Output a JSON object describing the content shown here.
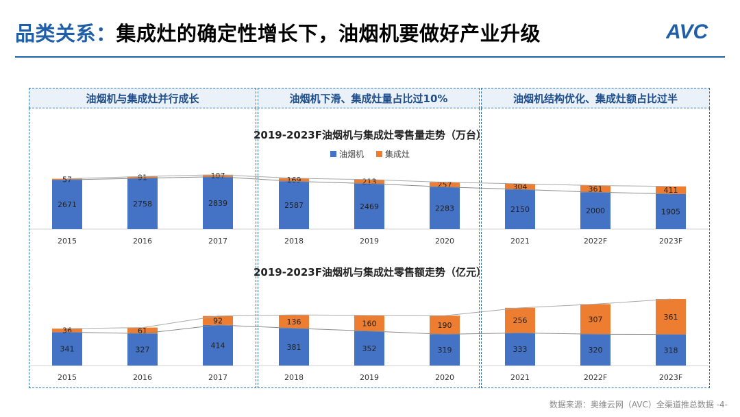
{
  "header": {
    "prefix": "品类关系：",
    "title": "集成灶的确定性增长下，油烟机要做好产业升级",
    "logo_text": "AVC"
  },
  "panels": [
    {
      "label": "油烟机与集成灶并行成长"
    },
    {
      "label": "油烟机下滑、集成灶量占比过10%"
    },
    {
      "label": "油烟机结构优化、集成灶额占比过半"
    }
  ],
  "legend": [
    {
      "name": "油烟机",
      "color": "#4472c4"
    },
    {
      "name": "集成灶",
      "color": "#ed7d31"
    }
  ],
  "source": "数据来源：奥维云网（AVC）全渠道推总数据  -4-",
  "colors": {
    "blue": "#4472c4",
    "orange": "#ed7d31",
    "accent": "#1f5fa8"
  },
  "chart_data": [
    {
      "type": "bar",
      "stacked": true,
      "title": "2019-2023F油烟机与集成灶零售量走势（万台）",
      "categories": [
        "2015",
        "2016",
        "2017",
        "2018",
        "2019",
        "2020",
        "2021",
        "2022F",
        "2023F"
      ],
      "series": [
        {
          "name": "油烟机",
          "values": [
            2671,
            2758,
            2839,
            2587,
            2469,
            2283,
            2150,
            2000,
            1905
          ]
        },
        {
          "name": "集成灶",
          "values": [
            57,
            91,
            107,
            169,
            213,
            257,
            304,
            361,
            411
          ]
        }
      ]
    },
    {
      "type": "bar",
      "stacked": true,
      "title": "2019-2023F油烟机与集成灶零售额走势（亿元）",
      "categories": [
        "2015",
        "2016",
        "2017",
        "2018",
        "2019",
        "2020",
        "2021",
        "2022F",
        "2023F"
      ],
      "series": [
        {
          "name": "油烟机",
          "values": [
            341,
            327,
            414,
            381,
            352,
            319,
            333,
            320,
            318
          ]
        },
        {
          "name": "集成灶",
          "values": [
            36,
            61,
            92,
            136,
            160,
            190,
            256,
            307,
            361
          ]
        }
      ]
    }
  ]
}
